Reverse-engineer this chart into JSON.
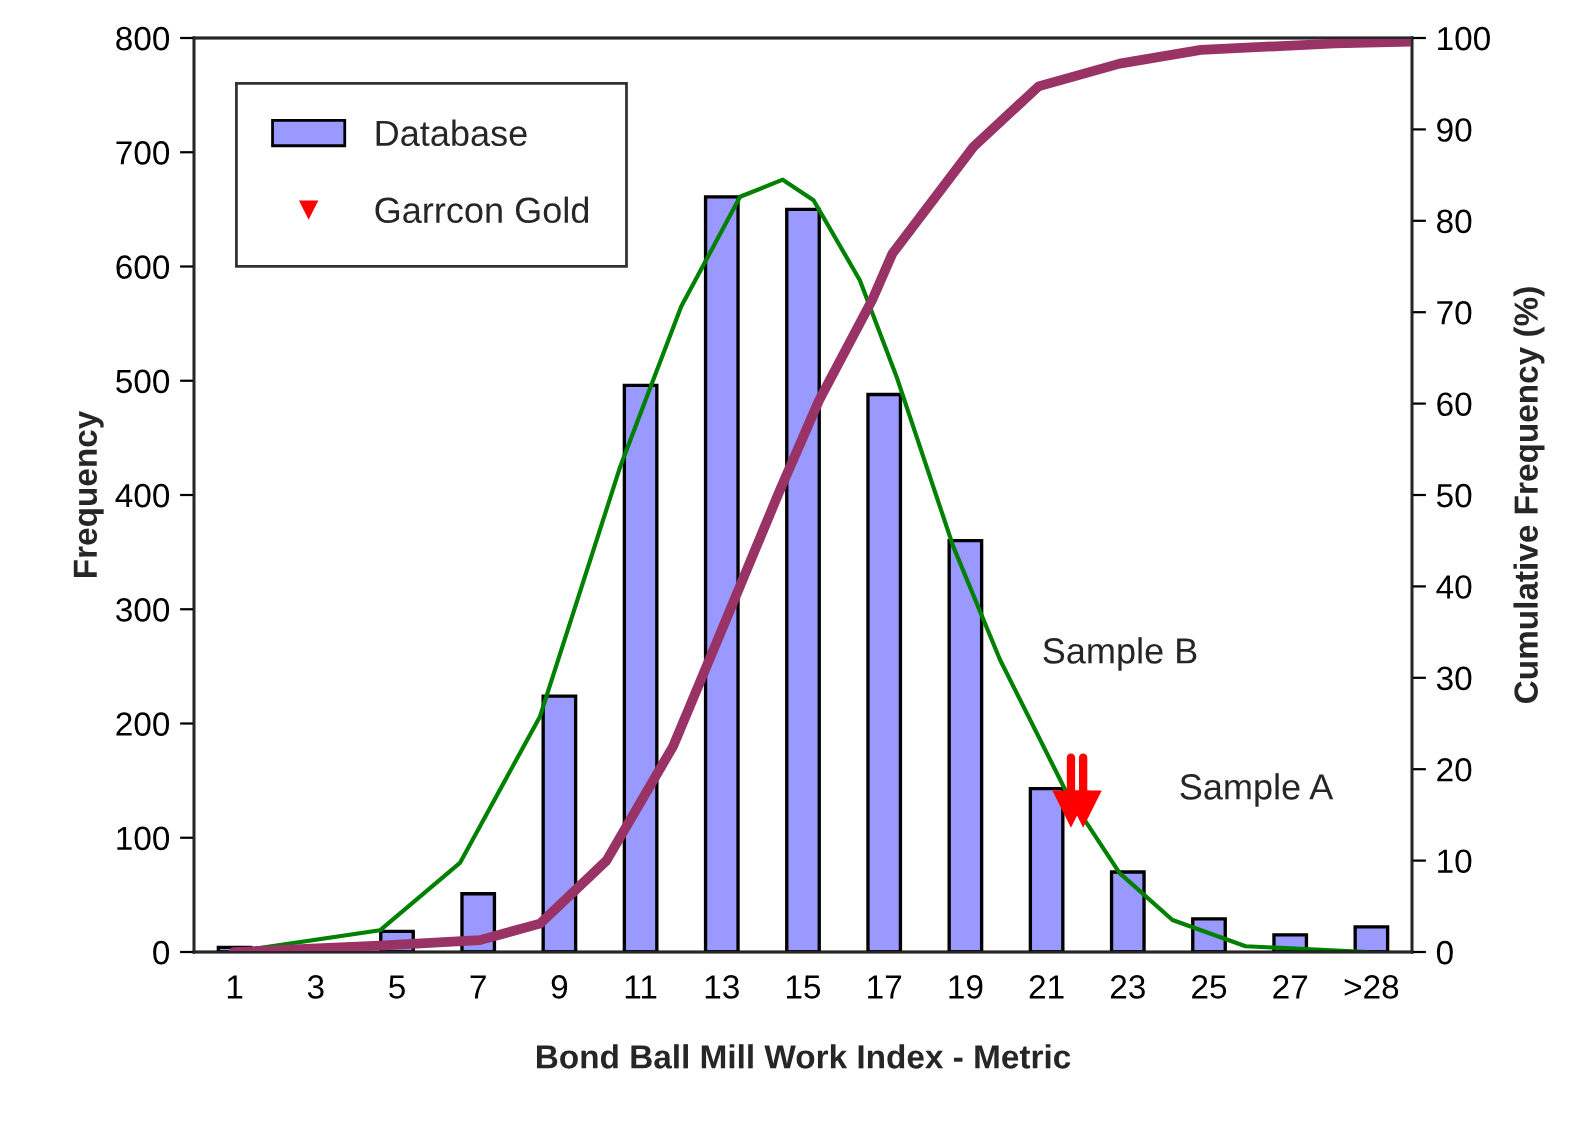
{
  "chart_data": {
    "type": "bar",
    "xlabel": "Bond Ball Mill Work Index - Metric",
    "ylabel": "Frequency",
    "y2label": "Cumulative Frequency (%)",
    "xlim": [
      0,
      30
    ],
    "xticks": [
      1,
      3,
      5,
      7,
      9,
      11,
      13,
      15,
      17,
      19,
      21,
      23,
      25,
      27,
      {
        "value": 29,
        "label": ">28"
      }
    ],
    "ylim": [
      0,
      800
    ],
    "yticks": [
      0,
      100,
      200,
      300,
      400,
      500,
      600,
      700,
      800
    ],
    "y2lim": [
      0,
      100
    ],
    "y2ticks": [
      0,
      10,
      20,
      30,
      40,
      50,
      60,
      70,
      80,
      90,
      100
    ],
    "legend": "top left",
    "grid": false,
    "series": [
      {
        "name": "Database",
        "color": "#9999ff",
        "x": [
          1,
          3,
          5,
          7,
          9,
          11,
          13,
          15,
          17,
          19,
          21,
          23,
          25,
          27,
          29
        ],
        "values": [
          4,
          1,
          18,
          51,
          224,
          496,
          661,
          650,
          488,
          360,
          143,
          70,
          29,
          15,
          22
        ]
      },
      {
        "type": "line",
        "color": "#008000",
        "x": [
          0.97,
          4.58,
          6.55,
          8.52,
          10.5,
          12.0,
          13.45,
          14.5,
          15.26,
          16.4,
          17.3,
          18.7,
          19.85,
          21.5,
          22.8,
          24.1,
          25.9,
          28.9
        ],
        "values": [
          0,
          19,
          78,
          206,
          425,
          565,
          661,
          676,
          658,
          588,
          504,
          355,
          256,
          139,
          69,
          28,
          5,
          0
        ]
      },
      {
        "type": "line",
        "color": "#993366",
        "axis": "y2",
        "x": [
          0.97,
          4.58,
          7.04,
          8.52,
          10.16,
          11.8,
          13.1,
          14.4,
          15.4,
          16.7,
          17.2,
          19.2,
          20.8,
          22.8,
          24.8,
          28.1,
          29.98
        ],
        "values": [
          0,
          0.7,
          1.3,
          3.1,
          10,
          22.5,
          36.3,
          50.2,
          60.4,
          71.3,
          76.4,
          88.1,
          94.7,
          97.2,
          98.7,
          99.4,
          99.6
        ]
      },
      {
        "name": "Garrcon Gold",
        "type": "scatter",
        "marker": "triangle",
        "color": "#ff0000",
        "x": [
          21.6,
          21.9
        ],
        "values": [
          125,
          125
        ]
      }
    ],
    "annotations": [
      "Sample B",
      "Sample A"
    ]
  }
}
